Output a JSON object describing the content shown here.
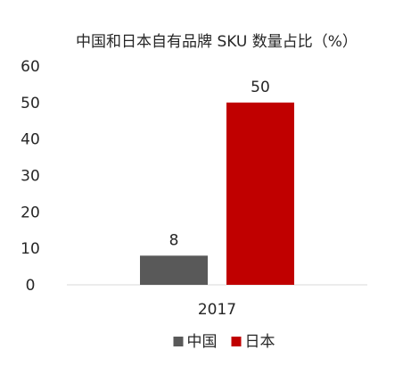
{
  "chart_data": {
    "type": "bar",
    "title": "中国和日本自有品牌 SKU 数量占比（%）",
    "xlabel": "",
    "ylabel": "",
    "categories": [
      "2017"
    ],
    "series": [
      {
        "name": "中国",
        "color": "#595959",
        "values": [
          8
        ]
      },
      {
        "name": "日本",
        "color": "#c00000",
        "values": [
          50
        ]
      }
    ],
    "ylim": [
      0,
      60
    ],
    "yticks": [
      0,
      10,
      20,
      30,
      40,
      50,
      60
    ],
    "grid": false,
    "legend": "bottom",
    "data_labels": true
  }
}
